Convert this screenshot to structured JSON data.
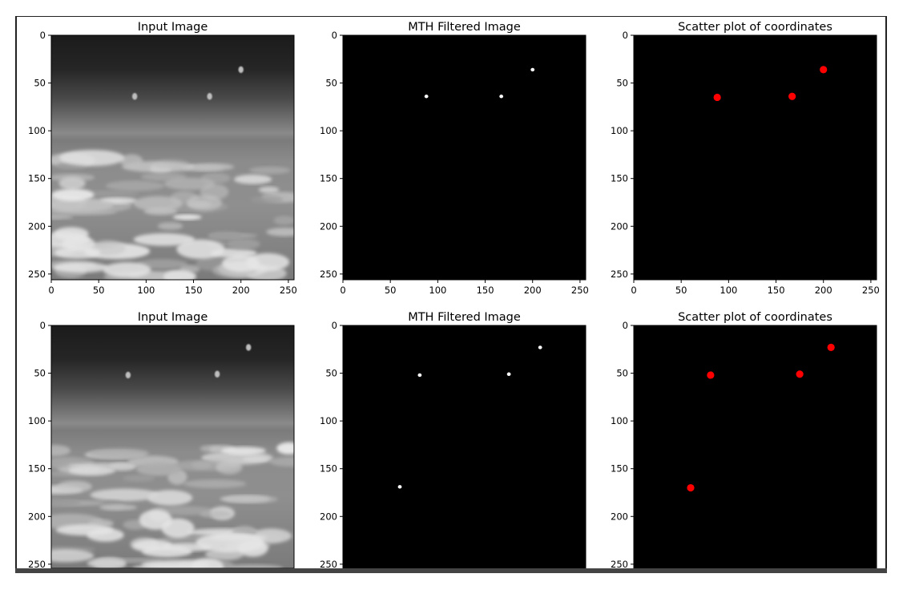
{
  "chart_data": [
    {
      "type": "image",
      "title": "Input Image",
      "x_ticks": [
        0,
        50,
        100,
        150,
        200,
        250
      ],
      "y_ticks": [
        0,
        50,
        100,
        150,
        200,
        250
      ],
      "xlim": [
        0,
        256
      ],
      "ylim": [
        256,
        0
      ],
      "y_inverted": true,
      "colormap": "gray"
    },
    {
      "type": "image",
      "title": "MTH Filtered Image",
      "x_ticks": [
        0,
        50,
        100,
        150,
        200,
        250
      ],
      "y_ticks": [
        0,
        50,
        100,
        150,
        200,
        250
      ],
      "xlim": [
        0,
        256
      ],
      "ylim": [
        256,
        0
      ],
      "y_inverted": true,
      "colormap": "gray",
      "bright_spots": [
        {
          "x": 88,
          "y": 64
        },
        {
          "x": 167,
          "y": 64
        },
        {
          "x": 200,
          "y": 36
        }
      ]
    },
    {
      "type": "scatter",
      "title": "Scatter plot of coordinates",
      "x_ticks": [
        0,
        50,
        100,
        150,
        200,
        250
      ],
      "y_ticks": [
        0,
        50,
        100,
        150,
        200,
        250
      ],
      "xlim": [
        0,
        256
      ],
      "ylim": [
        256,
        0
      ],
      "y_inverted": true,
      "background": "#000000",
      "marker_color": "#ff0000",
      "points": [
        {
          "x": 88,
          "y": 65
        },
        {
          "x": 167,
          "y": 64
        },
        {
          "x": 200,
          "y": 36
        }
      ]
    },
    {
      "type": "image",
      "title": "Input Image",
      "x_ticks": [],
      "y_ticks": [
        0,
        50,
        100,
        150,
        200,
        250
      ],
      "xlim": [
        0,
        256
      ],
      "ylim": [
        256,
        0
      ],
      "y_inverted": true,
      "colormap": "gray"
    },
    {
      "type": "image",
      "title": "MTH Filtered Image",
      "x_ticks": [],
      "y_ticks": [
        0,
        50,
        100,
        150,
        200,
        250
      ],
      "xlim": [
        0,
        256
      ],
      "ylim": [
        256,
        0
      ],
      "y_inverted": true,
      "colormap": "gray",
      "bright_spots": [
        {
          "x": 81,
          "y": 52
        },
        {
          "x": 175,
          "y": 51
        },
        {
          "x": 208,
          "y": 23
        },
        {
          "x": 60,
          "y": 169
        }
      ]
    },
    {
      "type": "scatter",
      "title": "Scatter plot of coordinates",
      "x_ticks": [],
      "y_ticks": [
        0,
        50,
        100,
        150,
        200,
        250
      ],
      "xlim": [
        0,
        256
      ],
      "ylim": [
        256,
        0
      ],
      "y_inverted": true,
      "background": "#000000",
      "marker_color": "#ff0000",
      "points": [
        {
          "x": 81,
          "y": 52
        },
        {
          "x": 175,
          "y": 51
        },
        {
          "x": 208,
          "y": 23
        },
        {
          "x": 60,
          "y": 170
        }
      ]
    }
  ]
}
